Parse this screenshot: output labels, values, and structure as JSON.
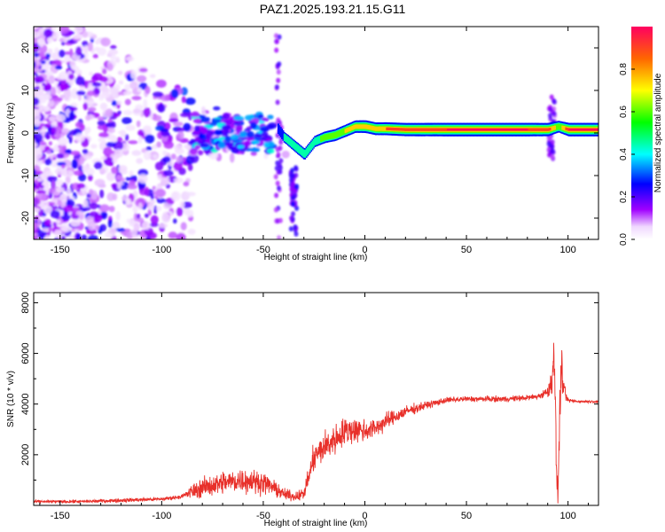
{
  "title": "PAZ1.2025.193.21.15.G11",
  "chart_data": [
    {
      "type": "heatmap",
      "xlabel": "Height of straight line (km)",
      "ylabel": "Frequency (Hz)",
      "xlim": [
        -163,
        115
      ],
      "ylim": [
        -25,
        25
      ],
      "xticks": [
        -150,
        -100,
        -50,
        0,
        50,
        100
      ],
      "yticks": [
        -20,
        -10,
        0,
        10,
        20
      ],
      "colorbar": {
        "label": "Normalized spectral amplitude",
        "range": [
          0.0,
          1.0
        ],
        "ticks": [
          0.0,
          0.2,
          0.4,
          0.6,
          0.8
        ],
        "colormap": "rainbow"
      },
      "ridge": {
        "x": [
          -43,
          -40,
          -35,
          -30,
          -25,
          -20,
          -15,
          -10,
          -5,
          0,
          5,
          10,
          20,
          40,
          60,
          80,
          90,
          95,
          100,
          115
        ],
        "y": [
          1,
          -1,
          -3,
          -5,
          -2,
          -1,
          -0.5,
          0.5,
          1.5,
          1.5,
          1,
          1,
          0.8,
          0.8,
          0.8,
          0.8,
          0.8,
          1.5,
          0.8,
          0.8
        ],
        "amplitude": [
          0.35,
          0.4,
          0.5,
          0.55,
          0.5,
          0.6,
          0.65,
          0.7,
          0.75,
          0.8,
          0.8,
          0.85,
          0.9,
          0.95,
          0.95,
          0.95,
          0.9,
          0.6,
          0.95,
          0.95
        ]
      }
    },
    {
      "type": "line",
      "xlabel": "Height of straight line (km)",
      "ylabel": "SNR (10 * v/v)",
      "xlim": [
        -163,
        115
      ],
      "ylim": [
        0,
        8400
      ],
      "xticks": [
        -150,
        -100,
        -50,
        0,
        50,
        100
      ],
      "yticks": [
        2000,
        4000,
        6000,
        8000
      ],
      "color": "#e8302a",
      "envelope": {
        "x": [
          -163,
          -140,
          -120,
          -100,
          -90,
          -85,
          -80,
          -70,
          -60,
          -50,
          -45,
          -40,
          -35,
          -30,
          -25,
          -20,
          -15,
          -10,
          -5,
          0,
          5,
          10,
          20,
          30,
          40,
          50,
          60,
          70,
          80,
          85,
          88,
          90,
          92,
          93,
          94,
          95,
          96,
          97,
          98,
          100,
          105,
          115
        ],
        "y": [
          150,
          150,
          200,
          250,
          350,
          550,
          700,
          900,
          1000,
          900,
          700,
          450,
          350,
          450,
          1900,
          2300,
          2600,
          2900,
          3000,
          2950,
          3050,
          3300,
          3700,
          3950,
          4150,
          4200,
          4200,
          4200,
          4250,
          4300,
          4400,
          4500,
          4800,
          6500,
          2500,
          150,
          4000,
          5500,
          4500,
          4150,
          4100,
          4100
        ]
      },
      "noise": [
        80,
        80,
        100,
        100,
        100,
        400,
        500,
        600,
        650,
        550,
        400,
        300,
        250,
        300,
        700,
        800,
        800,
        750,
        700,
        600,
        500,
        450,
        300,
        200,
        150,
        150,
        150,
        150,
        150,
        150,
        200,
        300,
        700,
        1800,
        1800,
        100,
        1500,
        1500,
        500,
        100,
        60,
        60
      ]
    }
  ]
}
